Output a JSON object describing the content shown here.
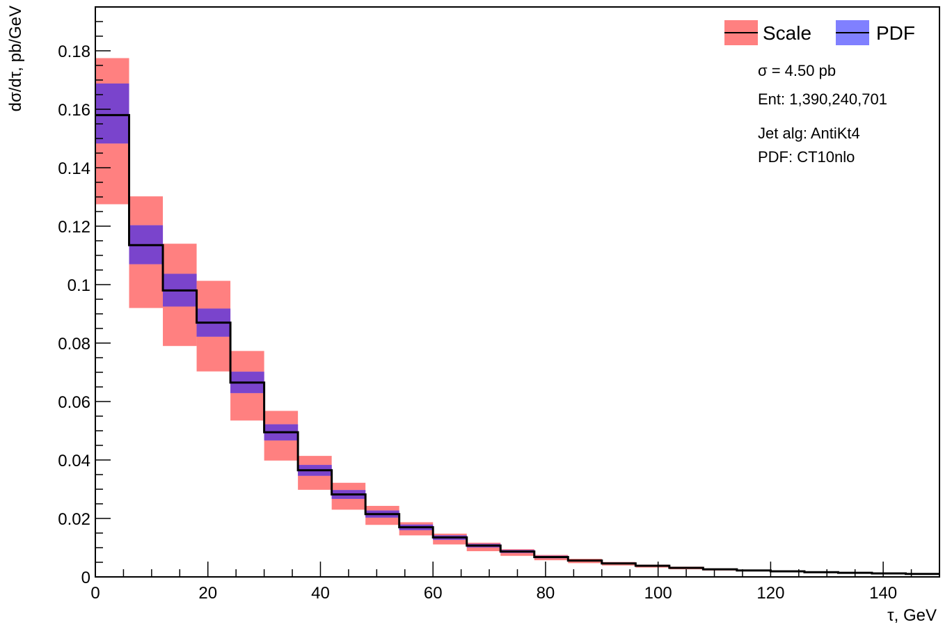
{
  "chart_data": {
    "type": "histogram",
    "xlabel": "τ, GeV",
    "ylabel": "dσ/dτ, pb/GeV",
    "xlim": [
      0,
      150
    ],
    "ylim": [
      0,
      0.195
    ],
    "bin_width": 6,
    "x_ticks": [
      {
        "value": 0,
        "label": "0"
      },
      {
        "value": 20,
        "label": "20"
      },
      {
        "value": 40,
        "label": "40"
      },
      {
        "value": 60,
        "label": "60"
      },
      {
        "value": 80,
        "label": "80"
      },
      {
        "value": 100,
        "label": "100"
      },
      {
        "value": 120,
        "label": "120"
      },
      {
        "value": 140,
        "label": "140"
      }
    ],
    "y_ticks": [
      {
        "value": 0,
        "label": "0"
      },
      {
        "value": 0.02,
        "label": "0.02"
      },
      {
        "value": 0.04,
        "label": "0.04"
      },
      {
        "value": 0.06,
        "label": "0.06"
      },
      {
        "value": 0.08,
        "label": "0.08"
      },
      {
        "value": 0.1,
        "label": "0.1"
      },
      {
        "value": 0.12,
        "label": "0.12"
      },
      {
        "value": 0.14,
        "label": "0.14"
      },
      {
        "value": 0.16,
        "label": "0.16"
      },
      {
        "value": 0.18,
        "label": "0.18"
      }
    ],
    "x_edges": [
      0,
      6,
      12,
      18,
      24,
      30,
      36,
      42,
      48,
      54,
      60,
      66,
      72,
      78,
      84,
      90,
      96,
      102,
      108,
      114,
      120,
      126,
      132,
      138,
      144,
      150
    ],
    "central": [
      0.158,
      0.1135,
      0.098,
      0.087,
      0.0665,
      0.0495,
      0.0365,
      0.0282,
      0.0215,
      0.017,
      0.0135,
      0.0107,
      0.0087,
      0.0068,
      0.0056,
      0.0046,
      0.0038,
      0.0031,
      0.0026,
      0.0022,
      0.0019,
      0.0016,
      0.0014,
      0.0012,
      0.001
    ],
    "series": [
      {
        "name": "Scale",
        "color": "#ff8080",
        "low": [
          0.1275,
          0.092,
          0.079,
          0.0703,
          0.0535,
          0.0398,
          0.0298,
          0.023,
          0.0178,
          0.0142,
          0.0111,
          0.0088,
          0.0072,
          0.0057,
          0.0047,
          0.0039,
          0.0032,
          0.0026,
          0.0022,
          0.0019,
          0.0016,
          0.0013,
          0.0012,
          0.001,
          0.0008
        ],
        "high": [
          0.1775,
          0.1302,
          0.114,
          0.1013,
          0.0773,
          0.0568,
          0.0414,
          0.0322,
          0.0243,
          0.0187,
          0.0148,
          0.0117,
          0.0095,
          0.0075,
          0.0062,
          0.0051,
          0.0042,
          0.0035,
          0.0029,
          0.0025,
          0.0021,
          0.0018,
          0.0016,
          0.0013,
          0.0011
        ]
      },
      {
        "name": "PDF",
        "color": "#8080ff",
        "low": [
          0.1483,
          0.107,
          0.0925,
          0.0822,
          0.0629,
          0.0467,
          0.0346,
          0.0267,
          0.0203,
          0.016,
          0.0127,
          0.0101,
          0.0082,
          0.0064,
          0.0053,
          0.0043,
          0.0036,
          0.0029,
          0.0024,
          0.002,
          0.0018,
          0.0015,
          0.0013,
          0.0011,
          0.0009
        ],
        "high": [
          0.1688,
          0.1203,
          0.1037,
          0.0918,
          0.0702,
          0.0522,
          0.0383,
          0.0297,
          0.0227,
          0.0179,
          0.0142,
          0.0113,
          0.0092,
          0.0072,
          0.0059,
          0.0049,
          0.004,
          0.0033,
          0.0028,
          0.0024,
          0.002,
          0.0017,
          0.0015,
          0.0013,
          0.0011
        ]
      }
    ],
    "overlap_color": "#7a44cc",
    "legend": {
      "placement": "top-right",
      "items": [
        {
          "label": "Scale",
          "color": "#ff8080"
        },
        {
          "label": "PDF",
          "color": "#8080ff"
        }
      ]
    },
    "info": {
      "sigma": "σ = 4.50 pb",
      "entries": "Ent: 1,390,240,701",
      "jet_alg": "Jet alg: AntiKt4",
      "pdf": "PDF: CT10nlo"
    }
  }
}
